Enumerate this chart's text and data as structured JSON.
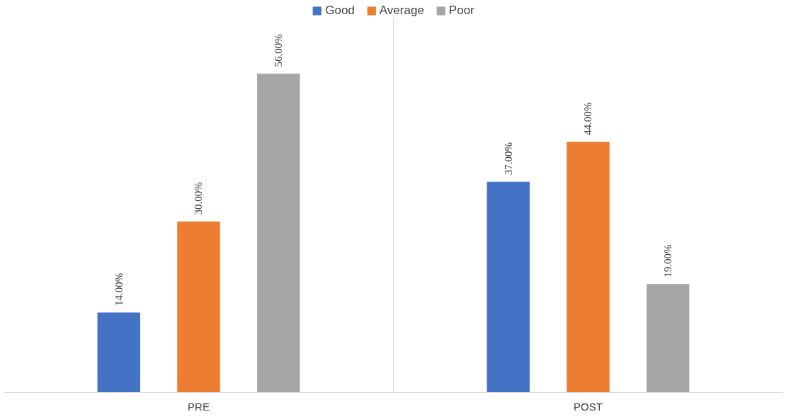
{
  "chart_data": {
    "type": "bar",
    "categories": [
      "PRE",
      "POST"
    ],
    "series": [
      {
        "name": "Good",
        "color": "#4472c4",
        "values": [
          14,
          37
        ],
        "value_labels": [
          "14.00%",
          "37.00%"
        ]
      },
      {
        "name": "Average",
        "color": "#ed7d31",
        "values": [
          30,
          44
        ],
        "value_labels": [
          "30.00%",
          "44.00%"
        ]
      },
      {
        "name": "Poor",
        "color": "#a5a5a5",
        "values": [
          56,
          19
        ],
        "value_labels": [
          "56.00%",
          "19.00%"
        ]
      }
    ],
    "legend": "top",
    "grid": "x"
  }
}
